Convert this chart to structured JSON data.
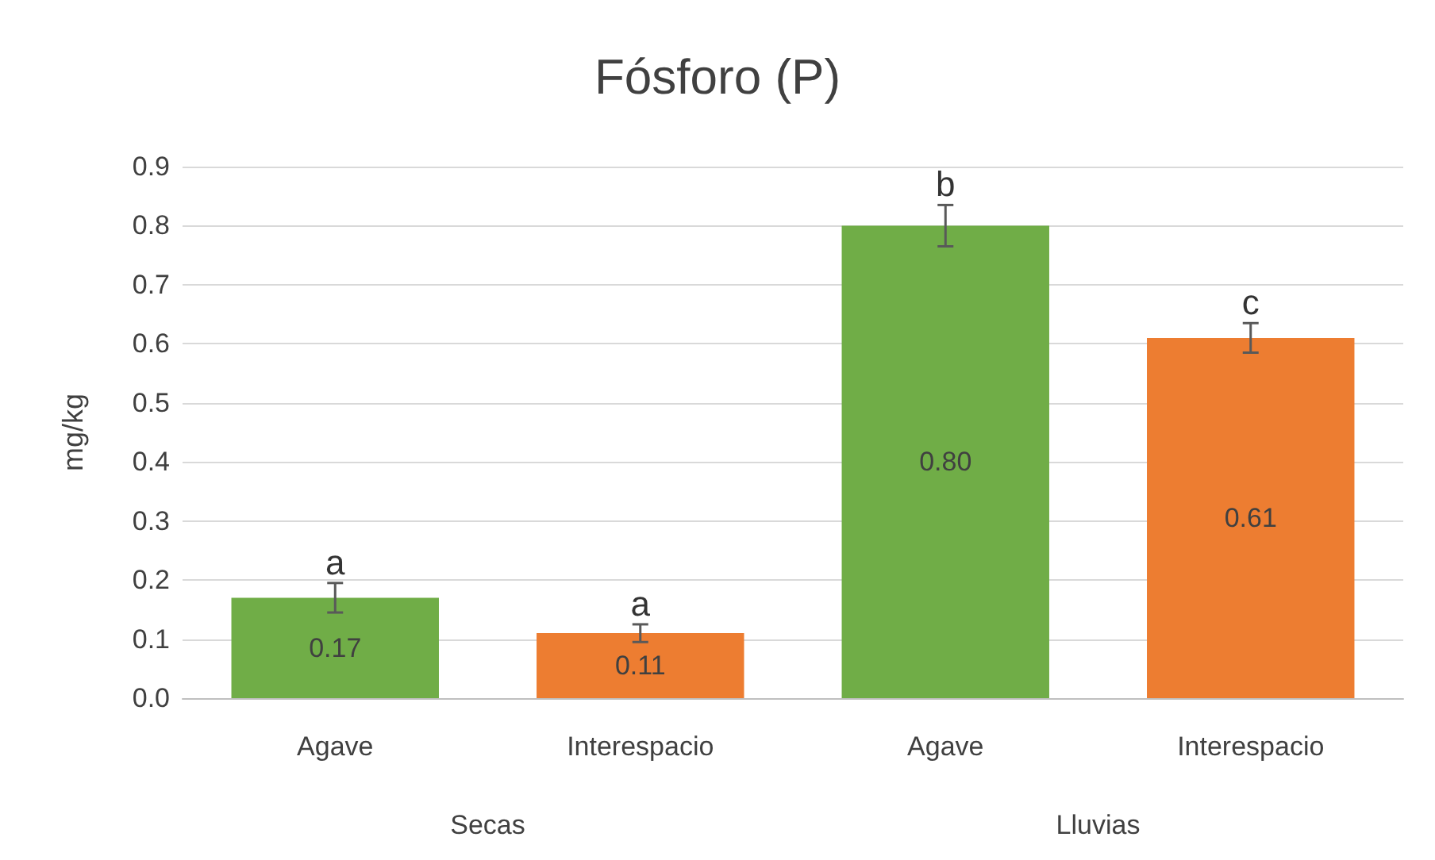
{
  "chart_data": {
    "type": "bar",
    "title": "Fósforo (P)",
    "ylabel": "mg/kg",
    "categories": [
      "Agave",
      "Interespacio",
      "Agave",
      "Interespacio"
    ],
    "values": [
      0.17,
      0.11,
      0.8,
      0.61
    ],
    "colors": [
      "#70ad47",
      "#ed7d31",
      "#70ad47",
      "#ed7d31"
    ],
    "errors": [
      0.025,
      0.015,
      0.035,
      0.025
    ],
    "value_labels": [
      "0.17",
      "0.11",
      "0.80",
      "0.61"
    ],
    "annotations": [
      "a",
      "a",
      "b",
      "c",
      "Secas",
      "Lluvias"
    ],
    "ylim": [
      0,
      0.9
    ],
    "yticks": [
      {
        "value": 0,
        "label": "0.0"
      },
      0.1,
      0.2,
      0.3,
      0.4,
      0.5,
      0.6,
      0.7,
      0.8,
      0.9
    ],
    "grid": "y"
  }
}
